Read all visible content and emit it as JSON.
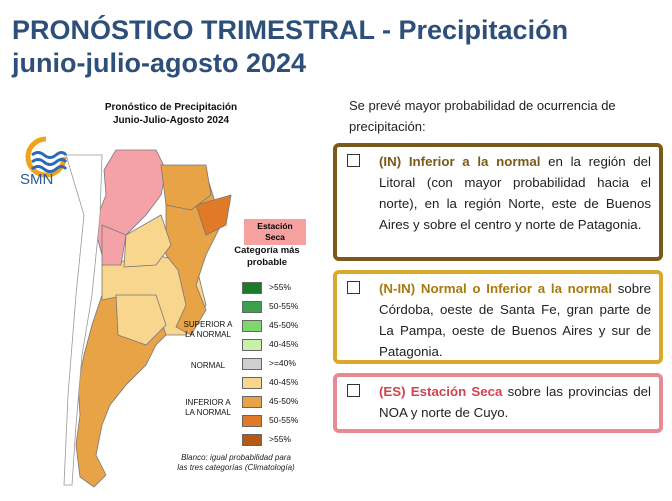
{
  "header": {
    "title_line1": "PRONÓSTICO TRIMESTRAL - Precipitación",
    "title_line2": "junio-julio-agosto 2024"
  },
  "map": {
    "title_line1": "Pronóstico de Precipitación",
    "title_line2": "Junio-Julio-Agosto 2024",
    "logo_text": "SMN",
    "station_label_line1": "Estación",
    "station_label_line2": "Seca",
    "legend_title_line1": "Categoría más",
    "legend_title_line2": "probable",
    "legend_groups": {
      "superior_line1": "SUPERIOR A",
      "superior_line2": "LA NORMAL",
      "normal": "NORMAL",
      "inferior_line1": "INFERIOR A",
      "inferior_line2": "LA NORMAL"
    },
    "legend": [
      {
        "label": ">55%",
        "color": "#1a7a2a"
      },
      {
        "label": "50-55%",
        "color": "#3aa04a"
      },
      {
        "label": "45-50%",
        "color": "#7ed66e"
      },
      {
        "label": "40-45%",
        "color": "#c8f0a8"
      },
      {
        "label": ">=40%",
        "color": "#d0d0d0"
      },
      {
        "label": "40-45%",
        "color": "#f9d68e"
      },
      {
        "label": "45-50%",
        "color": "#e8a346"
      },
      {
        "label": "50-55%",
        "color": "#e07a26"
      },
      {
        "label": ">55%",
        "color": "#b45a14"
      }
    ],
    "note_line1": "Blanco: igual probabilidad para",
    "note_line2": "las tres categorías (Climatología)"
  },
  "text": {
    "intro": "Se prevé mayor probabilidad de ocurrencia de precipitación:",
    "items": [
      {
        "highlight": "(IN) Inferior a la normal",
        "body": " en la región del Litoral (con mayor probabilidad hacia el norte), en la región Norte, este de Buenos Aires y sobre el centro y norte de Patagonia."
      },
      {
        "highlight": "(N-IN) Normal o Inferior a la normal",
        "body": " sobre Córdoba, oeste de Santa Fe, gran parte de La Pampa, oeste de Buenos Aires y sur de Patagonia."
      },
      {
        "highlight": "(ES) Estación Seca",
        "body": " sobre las provincias del NOA y norte de Cuyo."
      }
    ]
  }
}
